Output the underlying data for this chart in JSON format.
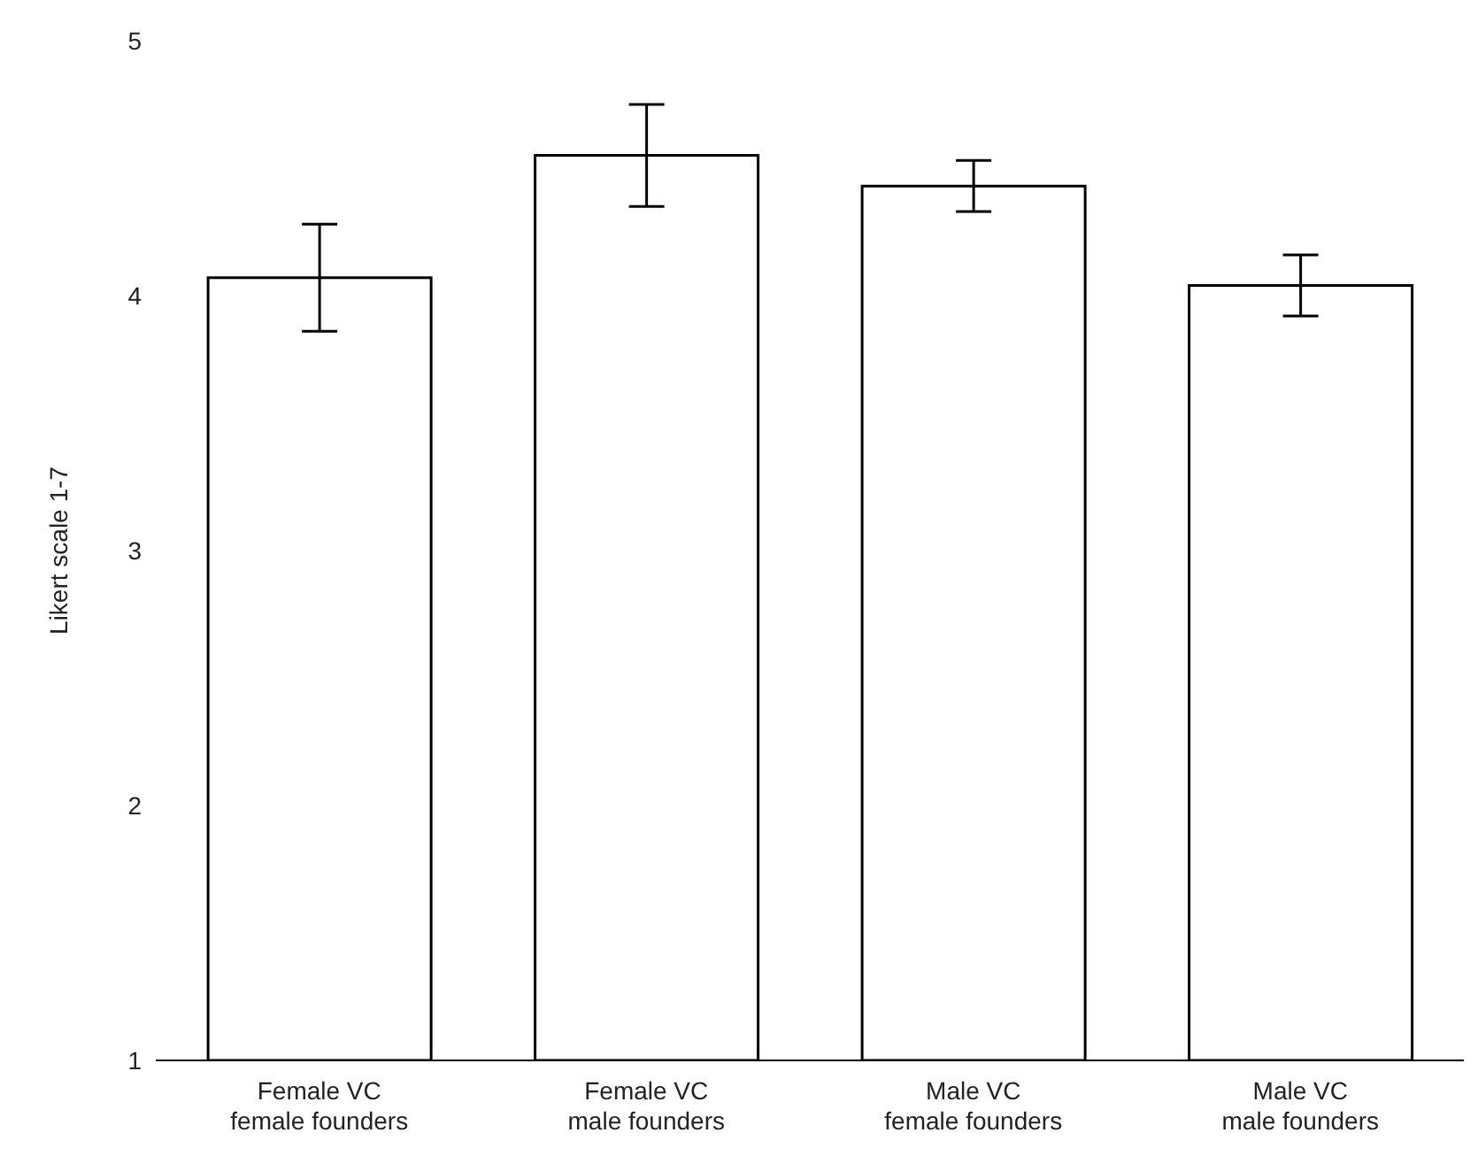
{
  "chart_data": {
    "type": "bar",
    "ylabel": "Likert scale 1-7",
    "categories": [
      "Female VC\nfemale founders",
      "Female VC\nmale founders",
      "Male VC\nfemale founders",
      "Male VC\nmale founders"
    ],
    "values": [
      4.07,
      4.55,
      4.43,
      4.04
    ],
    "errors": [
      0.21,
      0.2,
      0.1,
      0.12
    ],
    "color": "#ffffff",
    "ylim": [
      1,
      5
    ],
    "yticks": [
      1,
      2,
      3,
      4,
      5
    ],
    "grid": false,
    "legend": false
  }
}
